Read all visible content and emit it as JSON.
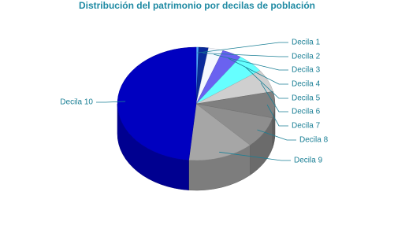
{
  "chart_data": {
    "type": "pie3d",
    "title": "Distribución del patrimonio por decilas de población",
    "categories": [
      "Decila 1",
      "Decila 2",
      "Decila 3",
      "Decila 4",
      "Decila 5",
      "Decila 6",
      "Decila 7",
      "Decila 8",
      "Decila 9",
      "Decila 10"
    ],
    "values": [
      0.5,
      2,
      3,
      4,
      5.5,
      6.5,
      7.5,
      9,
      13.5,
      48.5
    ],
    "colors": [
      "#4fa8ff",
      "#0a2a9a",
      "#f4f8ff",
      "#6a62f0",
      "#66ffff",
      "#cfcfcf",
      "#7f7f7f",
      "#8e8e8e",
      "#a6a6a6",
      "#0000c0"
    ]
  }
}
